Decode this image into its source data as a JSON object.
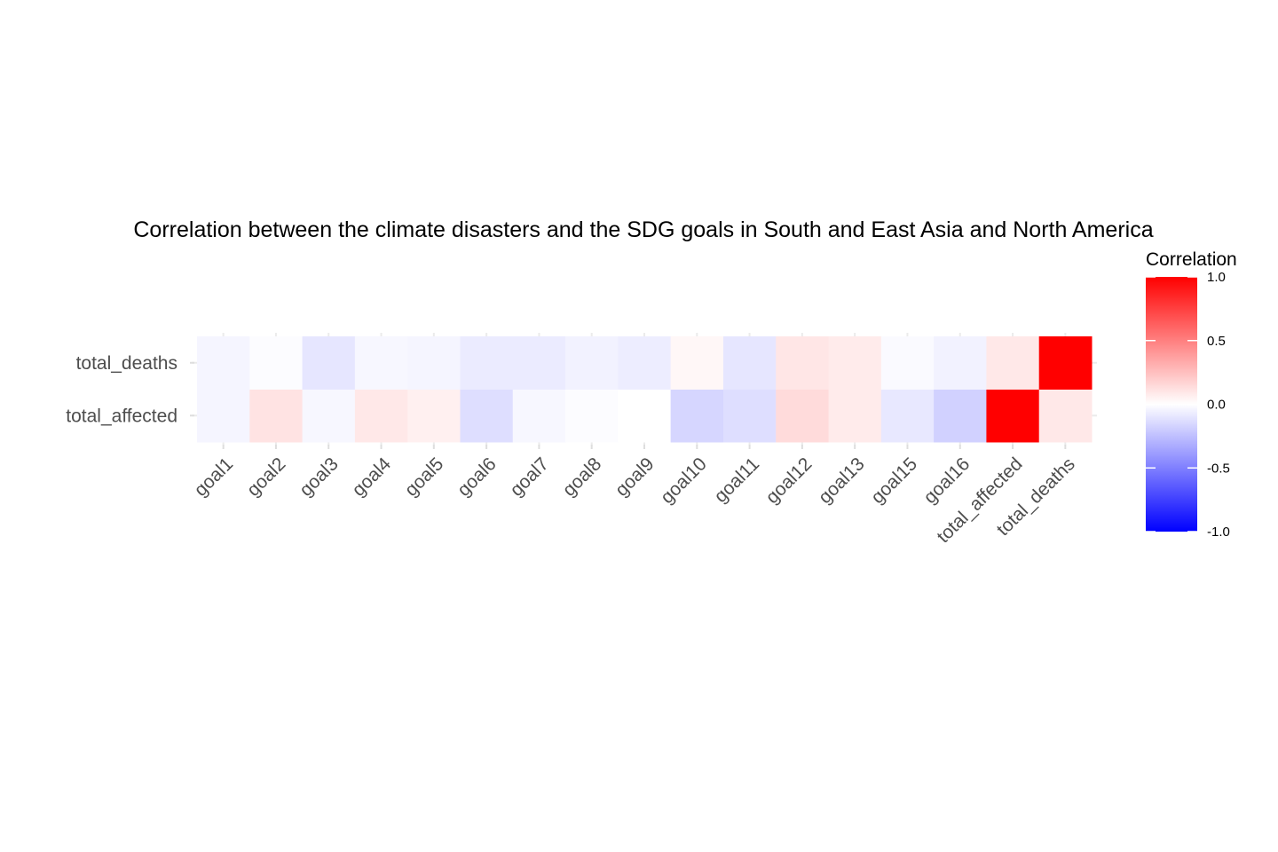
{
  "chart_data": {
    "type": "heatmap",
    "title": "Correlation between the climate disasters and the SDG goals in South and East Asia and North America",
    "xlabel": "",
    "ylabel": "",
    "x_categories": [
      "goal1",
      "goal2",
      "goal3",
      "goal4",
      "goal5",
      "goal6",
      "goal7",
      "goal8",
      "goal9",
      "goal10",
      "goal11",
      "goal12",
      "goal13",
      "goal15",
      "goal16",
      "total_affected",
      "total_deaths"
    ],
    "y_categories": [
      "total_affected",
      "total_deaths"
    ],
    "values": [
      [
        -0.04,
        0.11,
        -0.03,
        0.09,
        0.06,
        -0.13,
        -0.03,
        -0.01,
        0.0,
        -0.16,
        -0.13,
        0.14,
        0.08,
        -0.09,
        -0.18,
        1.0,
        0.09
      ],
      [
        -0.04,
        -0.01,
        -0.1,
        -0.03,
        -0.04,
        -0.08,
        -0.08,
        -0.05,
        -0.07,
        0.03,
        -0.1,
        0.1,
        0.08,
        -0.02,
        -0.05,
        0.09,
        1.0
      ]
    ],
    "legend": {
      "title": "Correlation",
      "position": "right",
      "limits": [
        -1.0,
        1.0
      ],
      "ticks": [
        1.0,
        0.5,
        0.0,
        -0.5,
        -1.0
      ],
      "tick_labels": [
        "1.0",
        "0.5",
        "0.0",
        "-0.5",
        "-1.0"
      ],
      "colors": {
        "low": "#0000ff",
        "mid": "#ffffff",
        "high": "#ff0000"
      }
    },
    "grid": true
  }
}
